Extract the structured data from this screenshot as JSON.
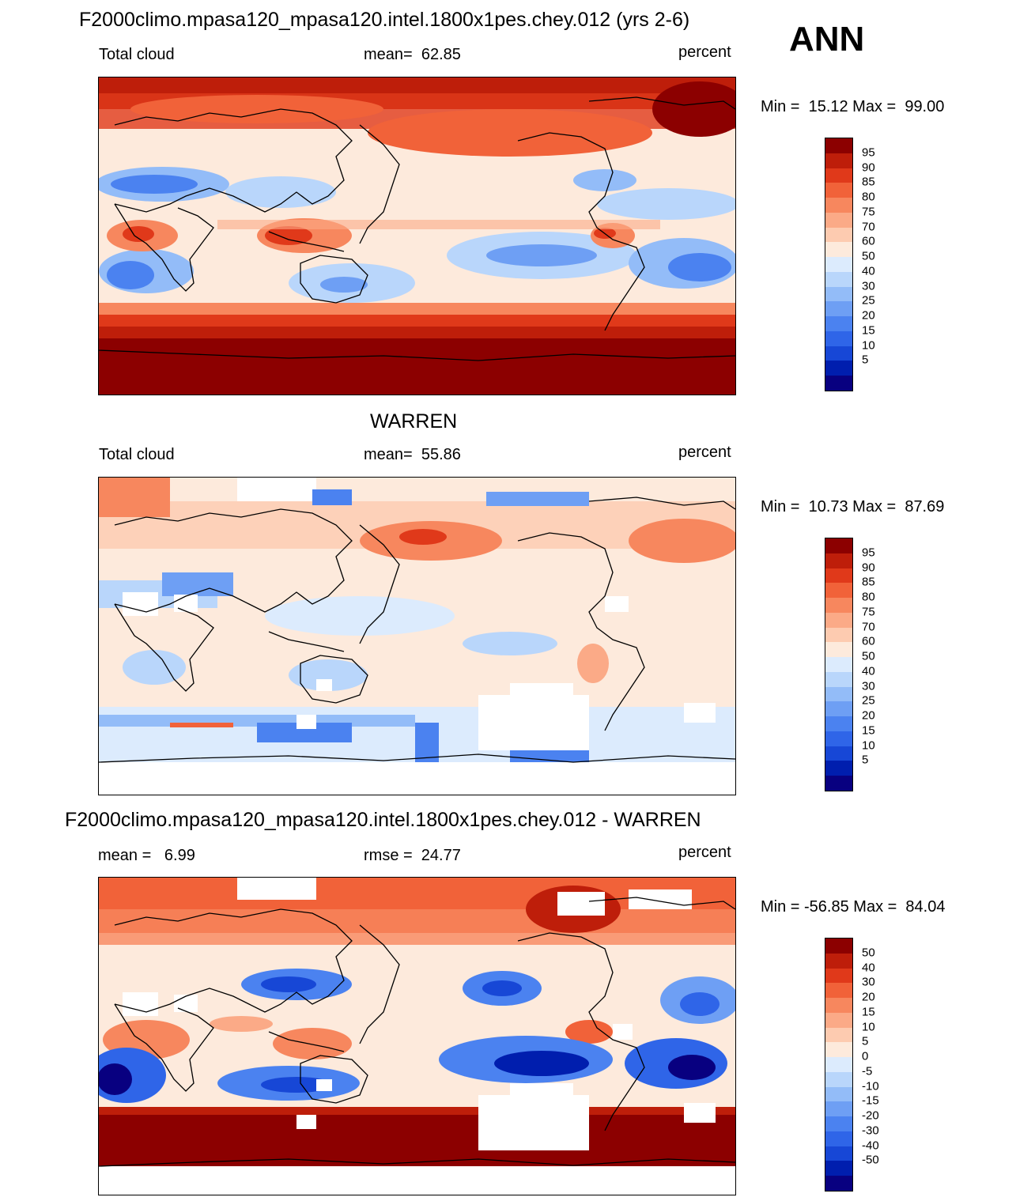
{
  "season": "ANN",
  "colors": {
    "full_scale": [
      "#080080",
      "#001eae",
      "#1747d6",
      "#2f65e8",
      "#4b82f0",
      "#6e9ff4",
      "#93bcf8",
      "#b9d6fb",
      "#dcebfd",
      "#fdeadc",
      "#fdcbb0",
      "#fbaa87",
      "#f7875e",
      "#f16239",
      "#e0391a",
      "#be1e0a",
      "#8c0000"
    ],
    "coast": "#000000"
  },
  "panels": [
    {
      "header": "F2000climo.mpasa120_mpasa120.intel.1800x1pes.chey.012 (yrs 2-6)",
      "left_label": "Total cloud",
      "center_label": "mean=  62.85",
      "right_label": "percent",
      "minmax": "Min =  15.12 Max =  99.00",
      "colorbar_labels": [
        "95",
        "90",
        "85",
        "80",
        "75",
        "70",
        "60",
        "50",
        "40",
        "30",
        "25",
        "20",
        "15",
        "10",
        "5"
      ]
    },
    {
      "header": "WARREN",
      "left_label": "Total cloud",
      "center_label": "mean=  55.86",
      "right_label": "percent",
      "minmax": "Min =  10.73 Max =  87.69",
      "colorbar_labels": [
        "95",
        "90",
        "85",
        "80",
        "75",
        "70",
        "60",
        "50",
        "40",
        "30",
        "25",
        "20",
        "15",
        "10",
        "5"
      ]
    },
    {
      "header": "F2000climo.mpasa120_mpasa120.intel.1800x1pes.chey.012 - WARREN",
      "left_label": "mean =   6.99",
      "center_label": "rmse =  24.77",
      "right_label": "percent",
      "minmax": "Min = -56.85 Max =  84.04",
      "colorbar_labels": [
        "50",
        "40",
        "30",
        "20",
        "15",
        "10",
        "5",
        "0",
        "-5",
        "-10",
        "-15",
        "-20",
        "-30",
        "-40",
        "-50"
      ]
    }
  ]
}
